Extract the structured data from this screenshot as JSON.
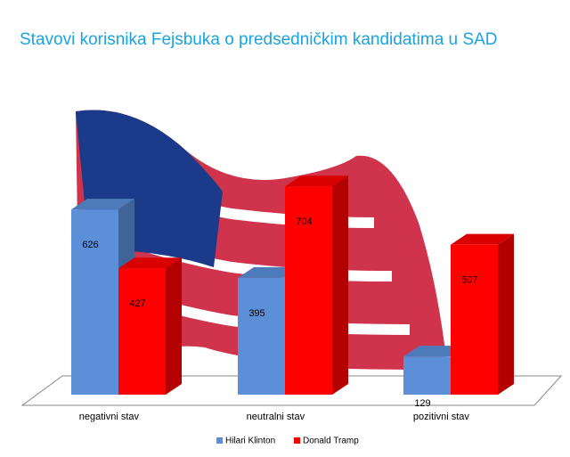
{
  "chart_data": {
    "type": "bar",
    "title": "Stavovi korisnika Fejsbuka o predsedničkim kandidatima u SAD",
    "categories": [
      "negativni stav",
      "neutralni stav",
      "pozitivni stav"
    ],
    "series": [
      {
        "name": "Hilari Klinton",
        "color": "#5b8fd8",
        "values": [
          626,
          395,
          129
        ]
      },
      {
        "name": "Donald Tramp",
        "color": "#ff0000",
        "values": [
          427,
          704,
          507
        ]
      }
    ]
  }
}
